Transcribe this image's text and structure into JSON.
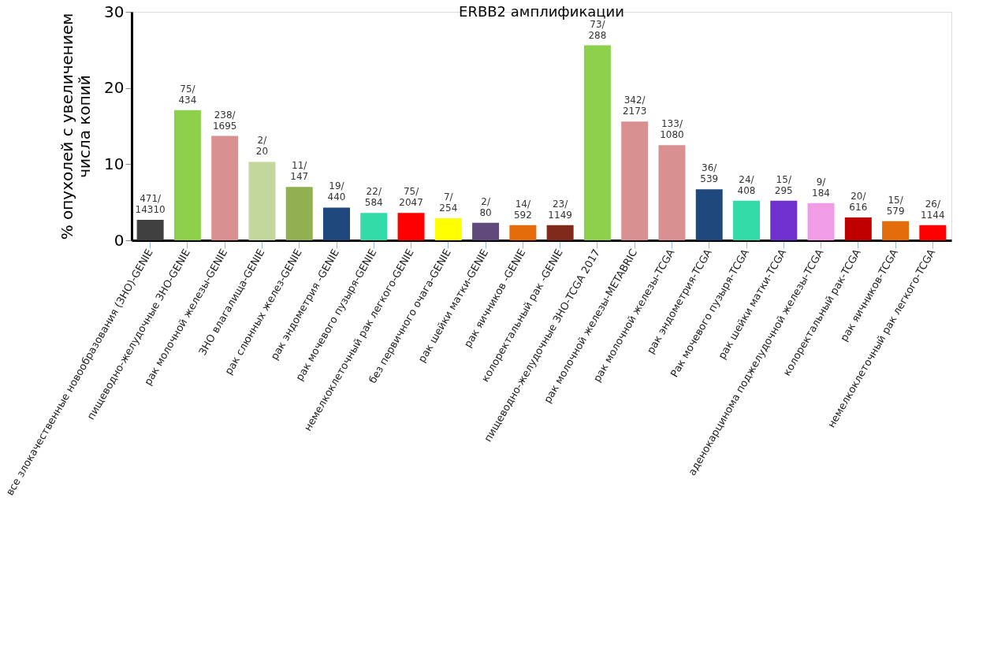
{
  "chart_data": {
    "type": "bar",
    "title": "ERBB2 амплификации",
    "ylabel": "% опухолей с увеличением\nчисла копий",
    "categories": [
      "все злокачественные новообразования (ЗНО)-GENIE",
      "пищеводно-желудочные ЗНО-GENIE",
      "рак молочной железы-GENIE",
      "ЗНО влагалища-GENIE",
      "рак слюнных желез-GENIE",
      "рак эндометрия -GENIE",
      "рак мочевого пузыря-GENIE",
      "немелкоклеточный рак легкого-GENIE",
      "без первичного очага-GENIE",
      "рак шейки матки-GENIE",
      "рак яичников -GENIE",
      "колоректальный рак -GENIE",
      "пищеводно-желудочные ЗНО-TCGA 2017",
      "рак молочной железы-METABRIC",
      "рак молочной железы-TCGA",
      "рак эндометрия-TCGA",
      "Рак мочевого пузыря-TCGA",
      "рак шейки матки-TCGA",
      "аденокарцинома поджелудочной железы-TCGA",
      "колоректальный рак-TCGA",
      "рак яичников-TCGA",
      "немелкоклеточный рак легкого-TCGA"
    ],
    "values": [
      2.7,
      17.1,
      13.7,
      10.3,
      7.0,
      4.3,
      3.6,
      3.6,
      2.9,
      2.3,
      2.0,
      2.0,
      25.6,
      15.6,
      12.5,
      6.7,
      5.2,
      5.2,
      4.9,
      3.0,
      2.5,
      2.0
    ],
    "colors": [
      "#404040",
      "#8cd04c",
      "#d99090",
      "#c3d69b",
      "#93b050",
      "#1f497d",
      "#33dba8",
      "#ff0000",
      "#ffff00",
      "#604a7b",
      "#e46c0a",
      "#7f2a1a",
      "#8cd04c",
      "#d99090",
      "#d99090",
      "#1f497d",
      "#33dba8",
      "#7030d0",
      "#f09de6",
      "#c00000",
      "#e46c0a",
      "#ff0000"
    ],
    "value_labels": [
      "471/\n14310",
      "75/\n434",
      "238/\n1695",
      "2/\n20",
      "11/\n147",
      "19/\n440",
      "22/\n584",
      "75/\n2047",
      "7/\n254",
      "2/\n80",
      "14/\n592",
      "23/\n1149",
      "73/\n288",
      "342/\n2173",
      "133/\n1080",
      "36/\n539",
      "24/\n408",
      "15/\n295",
      "9/\n184",
      "20/\n616",
      "15/\n579",
      "26/\n1144"
    ],
    "ylim": [
      0,
      30
    ],
    "yticks": [
      0,
      10,
      20,
      30
    ],
    "grid": false
  }
}
